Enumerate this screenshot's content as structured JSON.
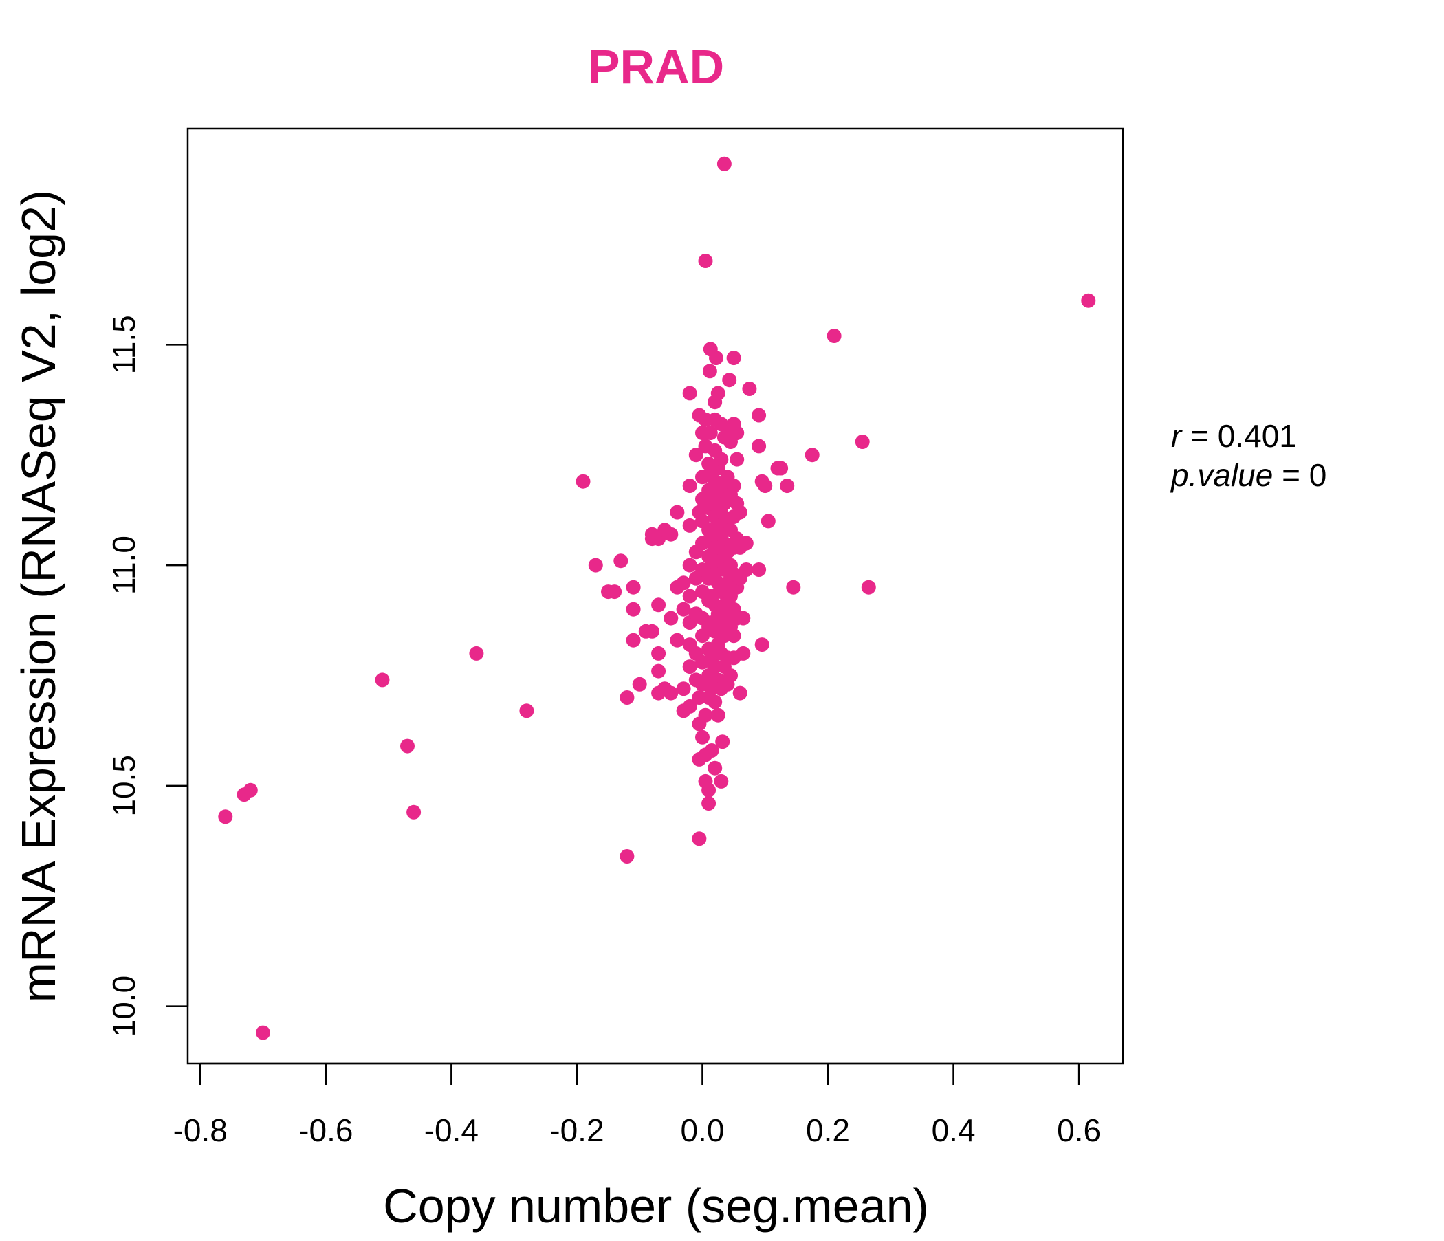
{
  "chart_data": {
    "type": "scatter",
    "title": "PRAD",
    "title_color": "#E8288A",
    "point_color": "#E8288A",
    "xlabel": "Copy number (seg.mean)",
    "ylabel": "mRNA Expression (RNASeq V2, log2)",
    "xlim": [
      -0.82,
      0.67
    ],
    "ylim": [
      9.87,
      11.99
    ],
    "x_ticks": [
      -0.8,
      -0.6,
      -0.4,
      -0.2,
      0.0,
      0.2,
      0.4,
      0.6
    ],
    "x_tick_labels": [
      "-0.8",
      "-0.6",
      "-0.4",
      "-0.2",
      "0.0",
      "0.2",
      "0.4",
      "0.6"
    ],
    "y_ticks": [
      10.0,
      10.5,
      11.0,
      11.5
    ],
    "y_tick_labels": [
      "10.0",
      "10.5",
      "11.0",
      "11.5"
    ],
    "grid": false,
    "legend": "none",
    "stats": {
      "r": "0.401",
      "p_value": "0"
    },
    "series": [
      {
        "points": [
          [
            -0.76,
            10.43
          ],
          [
            -0.73,
            10.48
          ],
          [
            -0.72,
            10.49
          ],
          [
            -0.7,
            9.94
          ],
          [
            -0.51,
            10.74
          ],
          [
            -0.47,
            10.59
          ],
          [
            -0.46,
            10.44
          ],
          [
            -0.36,
            10.8
          ],
          [
            -0.28,
            10.67
          ],
          [
            -0.19,
            11.19
          ],
          [
            -0.17,
            11.0
          ],
          [
            -0.15,
            10.94
          ],
          [
            -0.14,
            10.94
          ],
          [
            -0.13,
            11.01
          ],
          [
            -0.12,
            10.7
          ],
          [
            -0.12,
            10.34
          ],
          [
            -0.11,
            10.83
          ],
          [
            -0.11,
            10.9
          ],
          [
            -0.11,
            10.95
          ],
          [
            -0.1,
            10.73
          ],
          [
            -0.09,
            10.85
          ],
          [
            -0.08,
            10.85
          ],
          [
            -0.08,
            11.07
          ],
          [
            -0.08,
            11.06
          ],
          [
            -0.07,
            11.06
          ],
          [
            -0.07,
            10.8
          ],
          [
            -0.07,
            10.76
          ],
          [
            -0.07,
            10.71
          ],
          [
            -0.07,
            10.91
          ],
          [
            -0.06,
            11.08
          ],
          [
            -0.06,
            10.72
          ],
          [
            -0.05,
            11.07
          ],
          [
            -0.05,
            10.71
          ],
          [
            -0.05,
            10.88
          ],
          [
            -0.04,
            11.12
          ],
          [
            -0.04,
            10.95
          ],
          [
            -0.04,
            10.83
          ],
          [
            -0.03,
            10.96
          ],
          [
            -0.03,
            10.9
          ],
          [
            -0.03,
            10.72
          ],
          [
            -0.03,
            10.67
          ],
          [
            -0.02,
            11.39
          ],
          [
            -0.02,
            11.18
          ],
          [
            -0.02,
            11.09
          ],
          [
            -0.02,
            11.0
          ],
          [
            -0.02,
            10.93
          ],
          [
            -0.02,
            10.87
          ],
          [
            -0.02,
            10.82
          ],
          [
            -0.02,
            10.77
          ],
          [
            -0.02,
            10.68
          ],
          [
            -0.01,
            11.25
          ],
          [
            -0.01,
            11.03
          ],
          [
            -0.01,
            10.97
          ],
          [
            -0.01,
            10.89
          ],
          [
            -0.01,
            10.8
          ],
          [
            -0.01,
            10.74
          ],
          [
            -0.005,
            10.38
          ],
          [
            -0.005,
            10.56
          ],
          [
            -0.005,
            10.64
          ],
          [
            -0.005,
            10.7
          ],
          [
            -0.005,
            11.34
          ],
          [
            -0.005,
            11.12
          ],
          [
            0.0,
            11.3
          ],
          [
            0.0,
            11.2
          ],
          [
            0.0,
            11.15
          ],
          [
            0.0,
            11.1
          ],
          [
            0.0,
            11.05
          ],
          [
            0.0,
            10.99
          ],
          [
            0.0,
            10.94
          ],
          [
            0.0,
            10.88
          ],
          [
            0.0,
            10.84
          ],
          [
            0.0,
            10.78
          ],
          [
            0.0,
            10.73
          ],
          [
            0.0,
            10.61
          ],
          [
            0.005,
            11.69
          ],
          [
            0.005,
            11.33
          ],
          [
            0.005,
            11.27
          ],
          [
            0.005,
            10.51
          ],
          [
            0.005,
            10.57
          ],
          [
            0.005,
            10.66
          ],
          [
            0.01,
            11.23
          ],
          [
            0.01,
            11.17
          ],
          [
            0.01,
            11.13
          ],
          [
            0.01,
            11.08
          ],
          [
            0.01,
            11.02
          ],
          [
            0.01,
            10.97
          ],
          [
            0.01,
            10.92
          ],
          [
            0.01,
            10.86
          ],
          [
            0.01,
            10.81
          ],
          [
            0.01,
            10.75
          ],
          [
            0.01,
            10.7
          ],
          [
            0.01,
            10.46
          ],
          [
            0.01,
            10.49
          ],
          [
            0.012,
            11.44
          ],
          [
            0.013,
            11.49
          ],
          [
            0.013,
            11.3
          ],
          [
            0.015,
            11.21
          ],
          [
            0.015,
            11.14
          ],
          [
            0.015,
            11.06
          ],
          [
            0.015,
            11.0
          ],
          [
            0.015,
            10.93
          ],
          [
            0.015,
            10.87
          ],
          [
            0.015,
            10.79
          ],
          [
            0.015,
            10.72
          ],
          [
            0.015,
            10.58
          ],
          [
            0.02,
            11.37
          ],
          [
            0.02,
            11.33
          ],
          [
            0.02,
            11.26
          ],
          [
            0.02,
            11.19
          ],
          [
            0.02,
            11.11
          ],
          [
            0.02,
            11.04
          ],
          [
            0.02,
            10.98
          ],
          [
            0.02,
            10.91
          ],
          [
            0.02,
            10.85
          ],
          [
            0.02,
            10.77
          ],
          [
            0.02,
            10.69
          ],
          [
            0.02,
            10.54
          ],
          [
            0.022,
            11.47
          ],
          [
            0.025,
            11.39
          ],
          [
            0.025,
            11.22
          ],
          [
            0.025,
            11.16
          ],
          [
            0.025,
            11.09
          ],
          [
            0.025,
            11.03
          ],
          [
            0.025,
            10.96
          ],
          [
            0.025,
            10.89
          ],
          [
            0.025,
            10.82
          ],
          [
            0.025,
            10.74
          ],
          [
            0.025,
            10.66
          ],
          [
            0.03,
            11.32
          ],
          [
            0.03,
            11.24
          ],
          [
            0.03,
            11.18
          ],
          [
            0.03,
            11.12
          ],
          [
            0.03,
            11.07
          ],
          [
            0.03,
            11.01
          ],
          [
            0.03,
            10.94
          ],
          [
            0.03,
            10.87
          ],
          [
            0.03,
            10.8
          ],
          [
            0.03,
            10.72
          ],
          [
            0.03,
            10.51
          ],
          [
            0.032,
            10.6
          ],
          [
            0.035,
            11.91
          ],
          [
            0.035,
            11.29
          ],
          [
            0.035,
            11.14
          ],
          [
            0.035,
            11.05
          ],
          [
            0.035,
            10.99
          ],
          [
            0.035,
            10.91
          ],
          [
            0.035,
            10.84
          ],
          [
            0.035,
            10.77
          ],
          [
            0.04,
            11.31
          ],
          [
            0.04,
            11.2
          ],
          [
            0.04,
            11.1
          ],
          [
            0.04,
            11.03
          ],
          [
            0.04,
            10.96
          ],
          [
            0.04,
            10.88
          ],
          [
            0.04,
            10.79
          ],
          [
            0.04,
            10.73
          ],
          [
            0.043,
            11.42
          ],
          [
            0.045,
            11.28
          ],
          [
            0.045,
            11.16
          ],
          [
            0.045,
            11.08
          ],
          [
            0.045,
            11.0
          ],
          [
            0.045,
            10.93
          ],
          [
            0.045,
            10.86
          ],
          [
            0.045,
            10.75
          ],
          [
            0.05,
            11.47
          ],
          [
            0.05,
            11.32
          ],
          [
            0.05,
            11.18
          ],
          [
            0.05,
            11.11
          ],
          [
            0.05,
            11.04
          ],
          [
            0.05,
            10.98
          ],
          [
            0.05,
            10.9
          ],
          [
            0.05,
            10.84
          ],
          [
            0.05,
            10.79
          ],
          [
            0.055,
            11.3
          ],
          [
            0.055,
            11.24
          ],
          [
            0.055,
            11.14
          ],
          [
            0.055,
            11.06
          ],
          [
            0.055,
            10.95
          ],
          [
            0.055,
            10.88
          ],
          [
            0.06,
            11.12
          ],
          [
            0.06,
            11.04
          ],
          [
            0.06,
            10.97
          ],
          [
            0.06,
            10.71
          ],
          [
            0.065,
            10.88
          ],
          [
            0.065,
            10.8
          ],
          [
            0.07,
            11.05
          ],
          [
            0.07,
            10.99
          ],
          [
            0.075,
            11.4
          ],
          [
            0.09,
            11.34
          ],
          [
            0.09,
            11.27
          ],
          [
            0.09,
            10.99
          ],
          [
            0.095,
            11.19
          ],
          [
            0.095,
            10.82
          ],
          [
            0.1,
            11.18
          ],
          [
            0.105,
            11.1
          ],
          [
            0.12,
            11.22
          ],
          [
            0.125,
            11.22
          ],
          [
            0.135,
            11.18
          ],
          [
            0.145,
            10.95
          ],
          [
            0.175,
            11.25
          ],
          [
            0.21,
            11.52
          ],
          [
            0.255,
            11.28
          ],
          [
            0.265,
            10.95
          ],
          [
            0.615,
            11.6
          ]
        ]
      }
    ]
  }
}
